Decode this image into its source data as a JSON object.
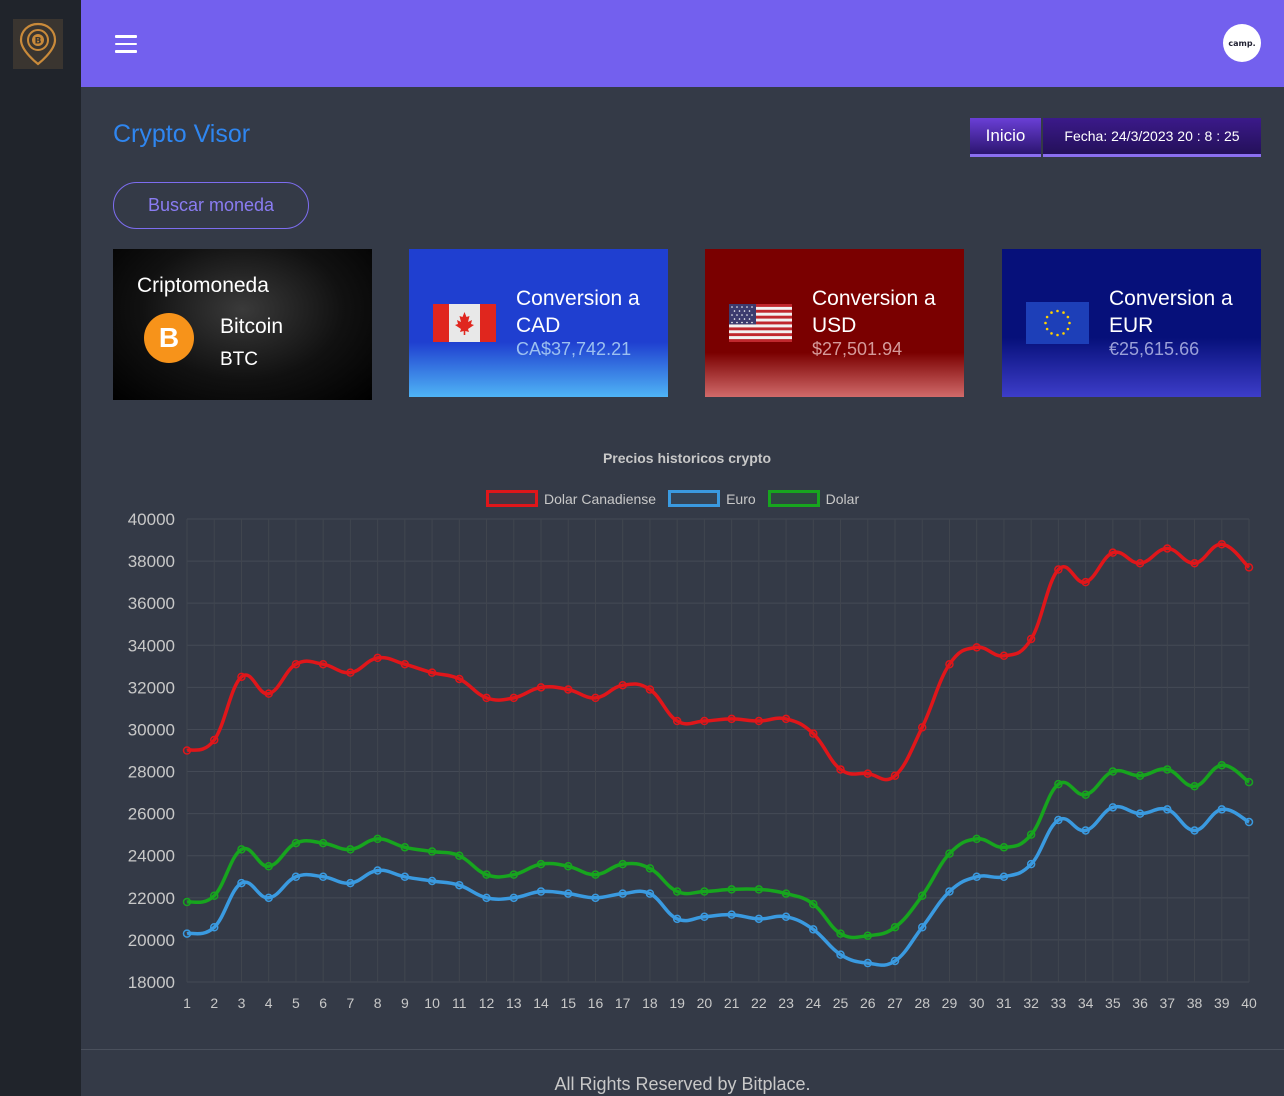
{
  "app": {
    "title": "Crypto Visor",
    "avatar_text": "camp.",
    "nav": {
      "home_label": "Inicio",
      "date_label": "Fecha: 24/3/2023 20 : 8 : 25"
    },
    "search_label": "Buscar moneda",
    "footer": "All Rights Reserved by Bitplace."
  },
  "cards": {
    "crypto": {
      "label": "Criptomoneda",
      "name": "Bitcoin",
      "symbol": "BTC",
      "icon_glyph": "B"
    },
    "cad": {
      "title": "Conversion a CAD",
      "value": "CA$37,742.21"
    },
    "usd": {
      "title": "Conversion a USD",
      "value": "$27,501.94"
    },
    "eur": {
      "title": "Conversion a EUR",
      "value": "€25,615.66"
    }
  },
  "colors": {
    "topbar": "#7360ee",
    "accent": "#2f86f0",
    "cad_series": "#e0161a",
    "eur_series": "#3a9ae0",
    "usd_series": "#17a51e"
  },
  "chart_data": {
    "type": "line",
    "title": "Precios historicos crypto",
    "xlabel": "",
    "ylabel": "",
    "ylim": [
      18000,
      40000
    ],
    "yticks": [
      18000,
      20000,
      22000,
      24000,
      26000,
      28000,
      30000,
      32000,
      34000,
      36000,
      38000,
      40000
    ],
    "x": [
      "1",
      "2",
      "3",
      "4",
      "5",
      "6",
      "7",
      "8",
      "9",
      "10",
      "11",
      "12",
      "13",
      "14",
      "15",
      "16",
      "17",
      "18",
      "19",
      "20",
      "21",
      "22",
      "23",
      "24",
      "25",
      "26",
      "27",
      "28",
      "29",
      "30",
      "31",
      "32",
      "33",
      "34",
      "35",
      "36",
      "37",
      "38",
      "39",
      "40"
    ],
    "grid": true,
    "legend": "top",
    "series": [
      {
        "name": "Dolar Canadiense",
        "color": "#e0161a",
        "values": [
          29000,
          29500,
          32500,
          31700,
          33100,
          33100,
          32700,
          33400,
          33100,
          32700,
          32400,
          31500,
          31500,
          32000,
          31900,
          31500,
          32100,
          31900,
          30400,
          30400,
          30500,
          30400,
          30500,
          29800,
          28100,
          27900,
          27800,
          30100,
          33100,
          33900,
          33500,
          34300,
          37600,
          37000,
          38400,
          37900,
          38600,
          37900,
          38800,
          37700
        ]
      },
      {
        "name": "Euro",
        "color": "#3a9ae0",
        "values": [
          20300,
          20600,
          22700,
          22000,
          23000,
          23000,
          22700,
          23300,
          23000,
          22800,
          22600,
          22000,
          22000,
          22300,
          22200,
          22000,
          22200,
          22200,
          21000,
          21100,
          21200,
          21000,
          21100,
          20500,
          19300,
          18900,
          19000,
          20600,
          22300,
          23000,
          23000,
          23600,
          25700,
          25200,
          26300,
          26000,
          26200,
          25200,
          26200,
          25600
        ]
      },
      {
        "name": "Dolar",
        "color": "#17a51e",
        "values": [
          21800,
          22100,
          24300,
          23500,
          24600,
          24600,
          24300,
          24800,
          24400,
          24200,
          24000,
          23100,
          23100,
          23600,
          23500,
          23100,
          23600,
          23400,
          22300,
          22300,
          22400,
          22400,
          22200,
          21700,
          20300,
          20200,
          20600,
          22100,
          24100,
          24800,
          24400,
          25000,
          27400,
          26900,
          28000,
          27800,
          28100,
          27300,
          28300,
          27500
        ]
      }
    ]
  }
}
